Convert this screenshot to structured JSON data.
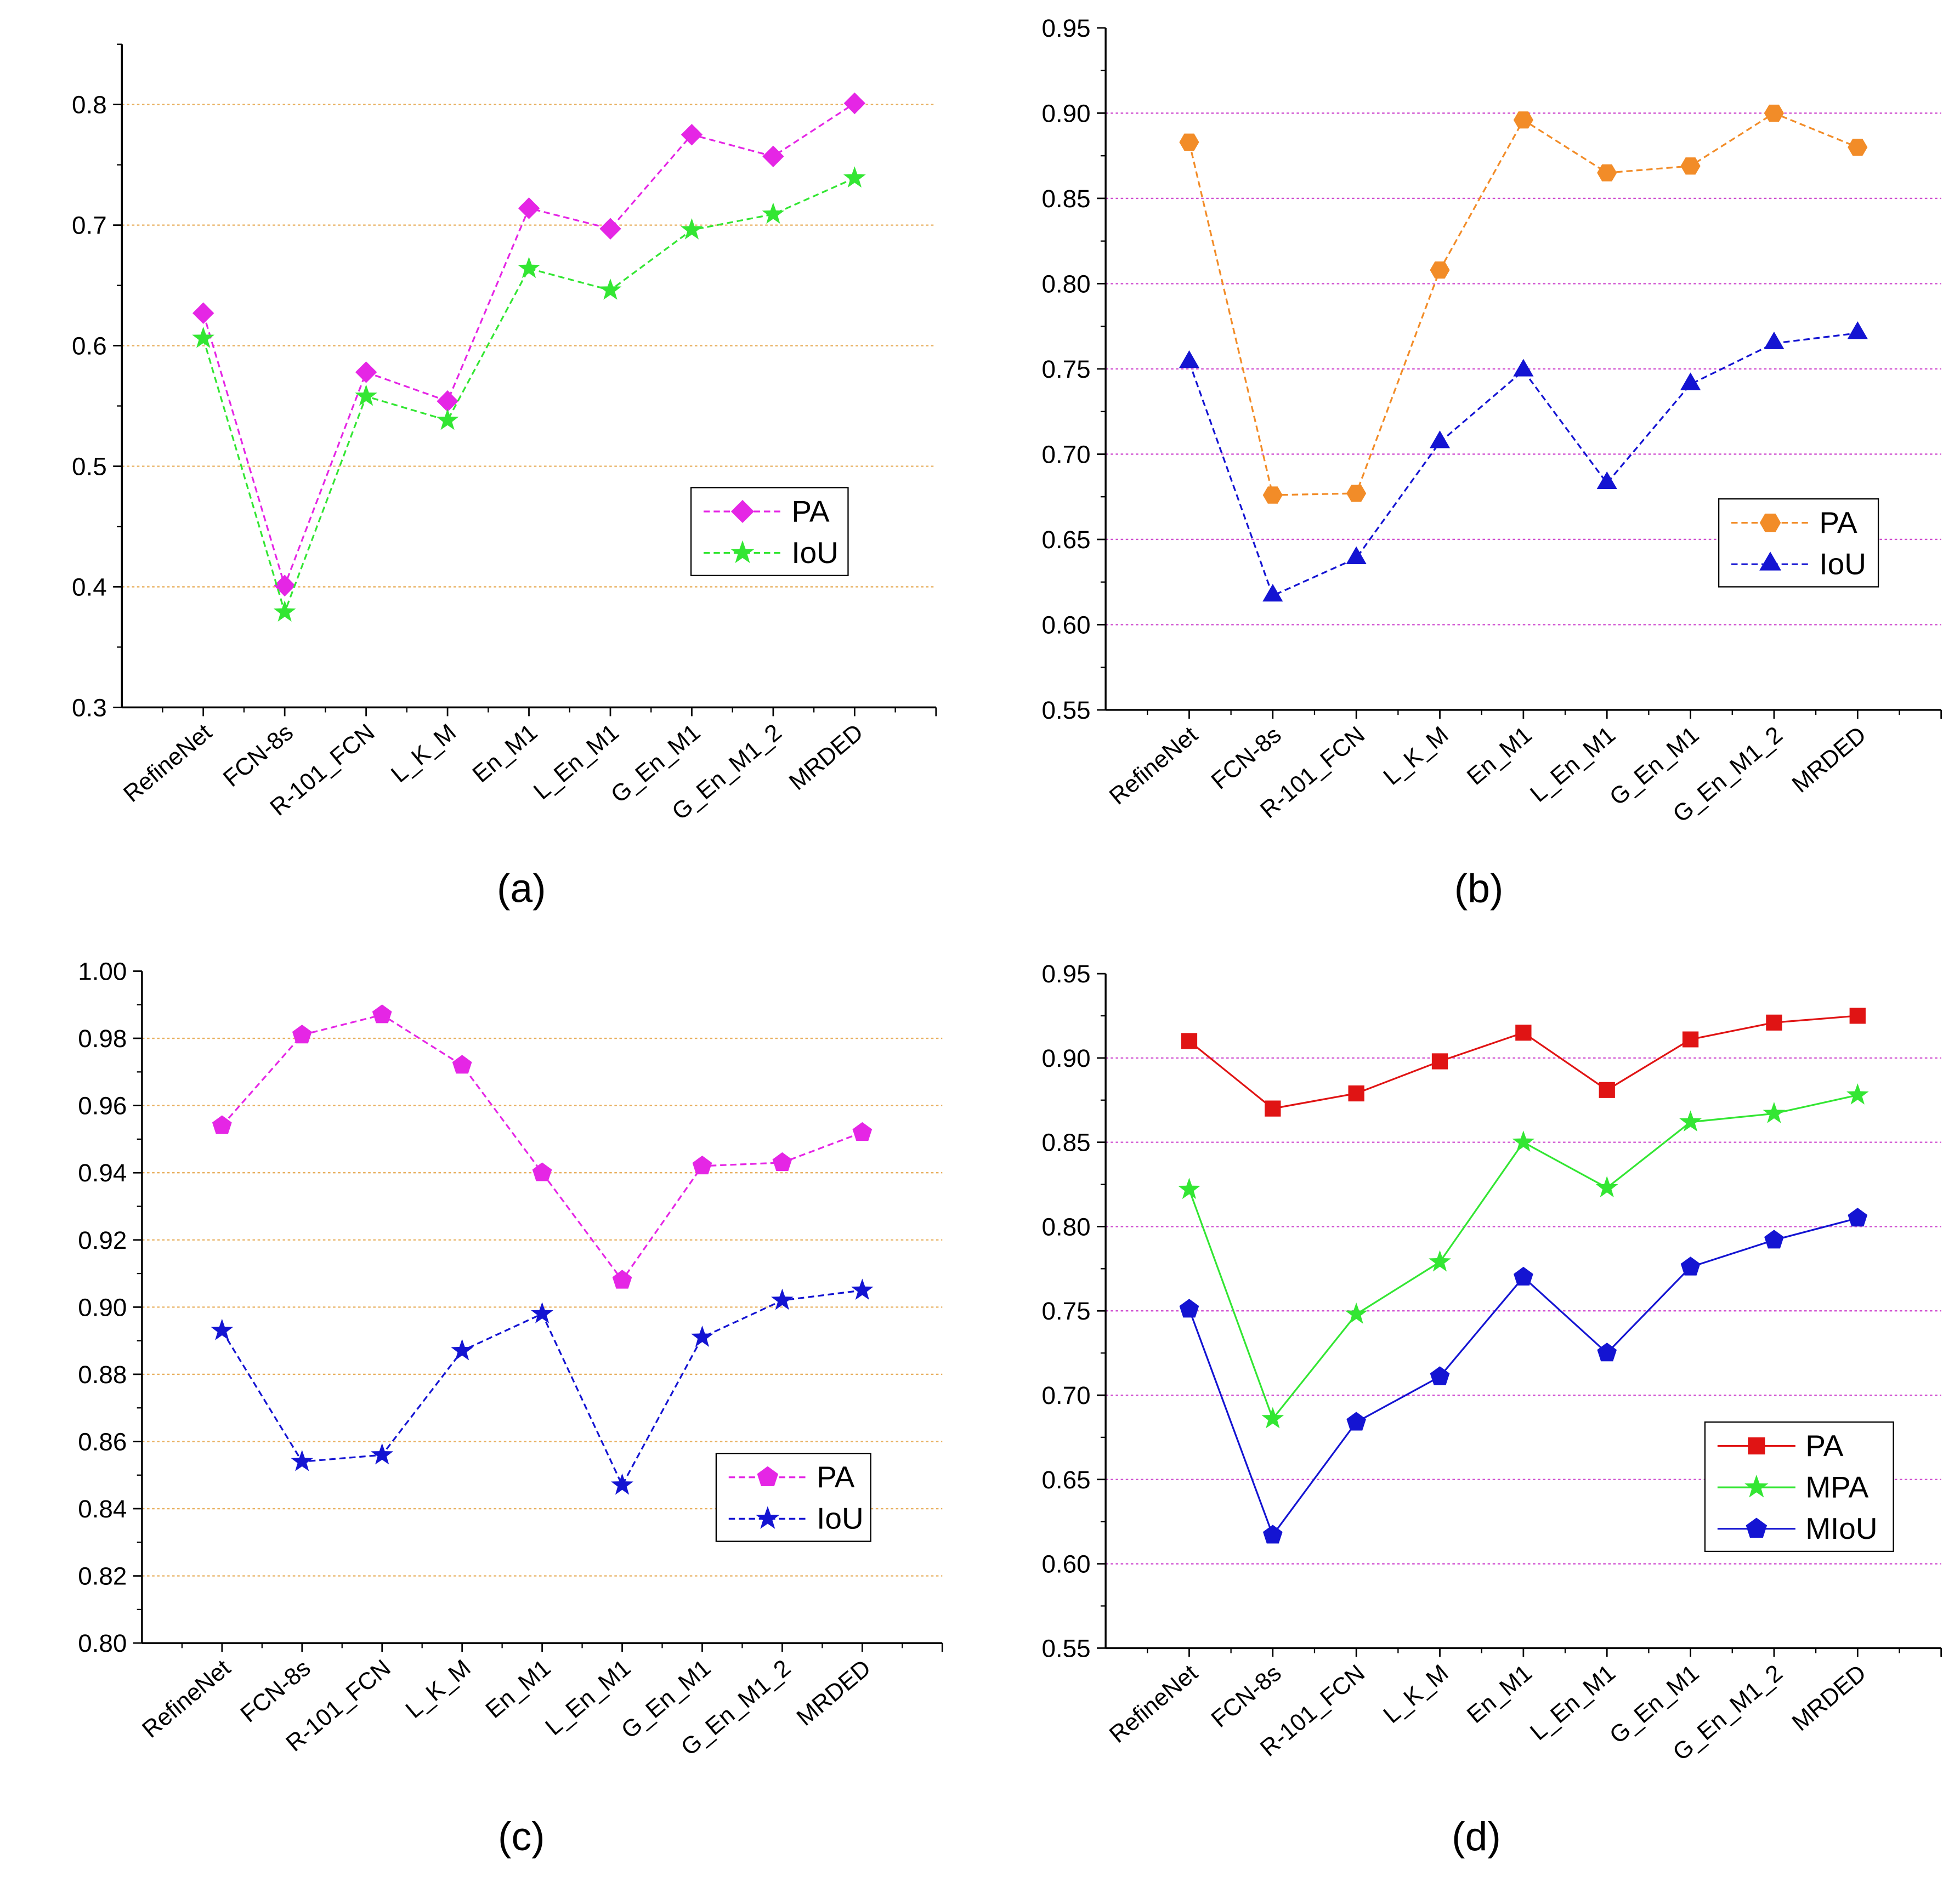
{
  "chart_data": [
    {
      "type": "line",
      "panel_label": "(a)",
      "categories": [
        "RefineNet",
        "FCN-8s",
        "R-101_FCN",
        "L_K_M",
        "En_M1",
        "L_En_M1",
        "G_En_M1",
        "G_En_M1_2",
        "MRDED"
      ],
      "ylim": [
        0.3,
        0.85
      ],
      "yticks": [
        "0.3",
        "0.4",
        "0.5",
        "0.6",
        "0.7",
        "0.8"
      ],
      "grid": {
        "values": [
          0.4,
          0.5,
          0.6,
          0.7,
          0.8
        ],
        "color": "#e8b060"
      },
      "legend": "center-right",
      "series": [
        {
          "name": "PA",
          "color": "#e526e5",
          "marker": "diamond",
          "dash": true,
          "values": [
            0.627,
            0.401,
            0.578,
            0.554,
            0.714,
            0.697,
            0.775,
            0.757,
            0.801
          ]
        },
        {
          "name": "IoU",
          "color": "#33e633",
          "marker": "star",
          "dash": true,
          "values": [
            0.606,
            0.379,
            0.558,
            0.538,
            0.664,
            0.646,
            0.696,
            0.709,
            0.739
          ]
        }
      ]
    },
    {
      "type": "line",
      "panel_label": "(b)",
      "categories": [
        "RefineNet",
        "FCN-8s",
        "R-101_FCN",
        "L_K_M",
        "En_M1",
        "L_En_M1",
        "G_En_M1",
        "G_En_M1_2",
        "MRDED"
      ],
      "ylim": [
        0.55,
        0.95
      ],
      "yticks": [
        "0.55",
        "0.60",
        "0.65",
        "0.70",
        "0.75",
        "0.80",
        "0.85",
        "0.90",
        "0.95"
      ],
      "grid": {
        "values": [
          0.6,
          0.65,
          0.7,
          0.75,
          0.8,
          0.85,
          0.9
        ],
        "color": "#d050d0"
      },
      "legend": "center-right",
      "series": [
        {
          "name": "PA",
          "color": "#f28c28",
          "marker": "hexagon",
          "dash": true,
          "values": [
            0.883,
            0.676,
            0.677,
            0.808,
            0.896,
            0.865,
            0.869,
            0.9,
            0.88
          ]
        },
        {
          "name": "IoU",
          "color": "#1414d2",
          "marker": "triangle",
          "dash": true,
          "values": [
            0.754,
            0.617,
            0.639,
            0.707,
            0.749,
            0.683,
            0.741,
            0.765,
            0.771
          ]
        }
      ]
    },
    {
      "type": "line",
      "panel_label": "(c)",
      "categories": [
        "RefineNet",
        "FCN-8s",
        "R-101_FCN",
        "L_K_M",
        "En_M1",
        "L_En_M1",
        "G_En_M1",
        "G_En_M1_2",
        "MRDED"
      ],
      "ylim": [
        0.8,
        1.0
      ],
      "yticks": [
        "0.80",
        "0.82",
        "0.84",
        "0.86",
        "0.88",
        "0.90",
        "0.92",
        "0.94",
        "0.96",
        "0.98",
        "1.00"
      ],
      "grid": {
        "values": [
          0.82,
          0.84,
          0.86,
          0.88,
          0.9,
          0.92,
          0.94,
          0.96,
          0.98
        ],
        "color": "#e8b060"
      },
      "legend": "bottom-right",
      "series": [
        {
          "name": "PA",
          "color": "#e526e5",
          "marker": "pentagon",
          "dash": true,
          "values": [
            0.954,
            0.981,
            0.987,
            0.972,
            0.94,
            0.908,
            0.942,
            0.943,
            0.952
          ]
        },
        {
          "name": "IoU",
          "color": "#1414d2",
          "marker": "star",
          "dash": true,
          "values": [
            0.893,
            0.854,
            0.856,
            0.887,
            0.898,
            0.847,
            0.891,
            0.902,
            0.905
          ]
        }
      ]
    },
    {
      "type": "line",
      "panel_label": "(d)",
      "categories": [
        "RefineNet",
        "FCN-8s",
        "R-101_FCN",
        "L_K_M",
        "En_M1",
        "L_En_M1",
        "G_En_M1",
        "G_En_M1_2",
        "MRDED"
      ],
      "ylim": [
        0.55,
        0.95
      ],
      "yticks": [
        "0.55",
        "0.60",
        "0.65",
        "0.70",
        "0.75",
        "0.80",
        "0.85",
        "0.90",
        "0.95"
      ],
      "grid": {
        "values": [
          0.6,
          0.65,
          0.7,
          0.75,
          0.8,
          0.85,
          0.9
        ],
        "color": "#d050d0"
      },
      "legend": "bottom-right",
      "series": [
        {
          "name": "PA",
          "color": "#e01414",
          "marker": "square",
          "dash": false,
          "values": [
            0.91,
            0.87,
            0.879,
            0.898,
            0.915,
            0.881,
            0.911,
            0.921,
            0.925
          ]
        },
        {
          "name": "MPA",
          "color": "#33e633",
          "marker": "star",
          "dash": false,
          "values": [
            0.822,
            0.686,
            0.748,
            0.779,
            0.85,
            0.823,
            0.862,
            0.867,
            0.878
          ]
        },
        {
          "name": "MIoU",
          "color": "#1414d2",
          "marker": "pentagon",
          "dash": false,
          "values": [
            0.751,
            0.617,
            0.684,
            0.711,
            0.77,
            0.725,
            0.776,
            0.792,
            0.805
          ]
        }
      ]
    }
  ]
}
